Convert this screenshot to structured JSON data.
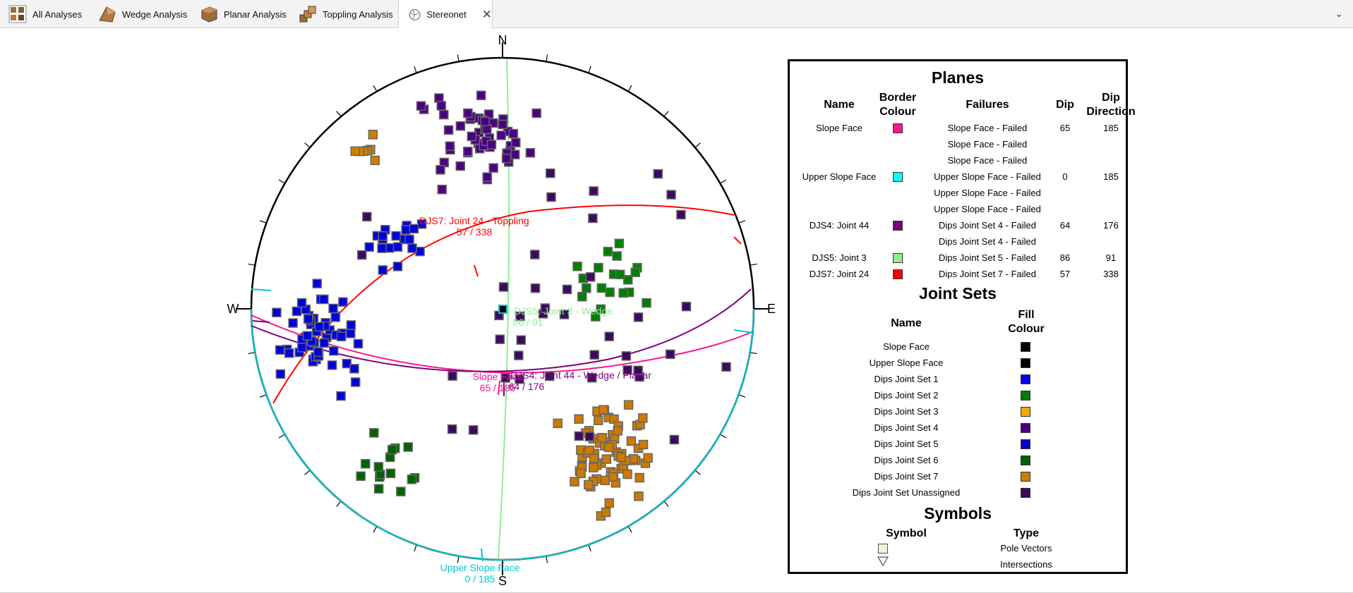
{
  "tabs": [
    {
      "label": "All Analyses",
      "icon": "all-analyses-icon"
    },
    {
      "label": "Wedge Analysis",
      "icon": "wedge-icon"
    },
    {
      "label": "Planar Analysis",
      "icon": "planar-icon"
    },
    {
      "label": "Toppling Analysis",
      "icon": "toppling-icon"
    },
    {
      "label": "Stereonet",
      "icon": "stereonet-icon",
      "active": true
    }
  ],
  "stereonet": {
    "compass": {
      "n": "N",
      "s": "S",
      "e": "E",
      "w": "W"
    },
    "labels": {
      "djs7_name": "DJS7: Joint 24 - Toppling",
      "djs7_orient": "57 / 338",
      "djs5_name": "DJS5: Joint 3 - Wedge",
      "djs5_orient": "86 / 91",
      "slope_name": "Slope Face",
      "slope_orient": "65 / 185",
      "djs4_name": "DJS4: Joint 44 - Wedge / Planar",
      "djs4_orient": "64 / 176",
      "upper_name": "Upper Slope Face",
      "upper_orient": "0 / 185"
    }
  },
  "legend": {
    "planes_title": "Planes",
    "planes_headers": {
      "name": "Name",
      "border": "Border Colour",
      "failures": "Failures",
      "dip": "Dip",
      "dipdir": "Dip Direction"
    },
    "planes": [
      {
        "name": "Slope Face",
        "color": "#ff1493",
        "failures": [
          "Slope Face - Failed",
          "Slope Face - Failed",
          "Slope Face - Failed"
        ],
        "dip": "65",
        "dipdir": "185"
      },
      {
        "name": "Upper Slope Face",
        "color": "#00ffff",
        "failures": [
          "Upper Slope Face - Failed",
          "Upper Slope Face - Failed",
          "Upper Slope Face - Failed"
        ],
        "dip": "0",
        "dipdir": "185"
      },
      {
        "name": "DJS4: Joint 44",
        "color": "#800080",
        "failures": [
          "Dips Joint Set 4 - Failed",
          "Dips Joint Set 4 - Failed"
        ],
        "dip": "64",
        "dipdir": "176"
      },
      {
        "name": "DJS5: Joint 3",
        "color": "#90ee90",
        "failures": [
          "Dips Joint Set 5 - Failed"
        ],
        "dip": "86",
        "dipdir": "91"
      },
      {
        "name": "DJS7: Joint 24",
        "color": "#ff0000",
        "failures": [
          "Dips Joint Set 7 - Failed"
        ],
        "dip": "57",
        "dipdir": "338"
      }
    ],
    "joint_sets_title": "Joint Sets",
    "joint_sets_headers": {
      "name": "Name",
      "fill": "Fill Colour"
    },
    "joint_sets": [
      {
        "name": "Slope Face",
        "color": "#000000"
      },
      {
        "name": "Upper Slope Face",
        "color": "#000000"
      },
      {
        "name": "Dips Joint Set 1",
        "color": "#0000ff"
      },
      {
        "name": "Dips Joint Set 2",
        "color": "#008000"
      },
      {
        "name": "Dips Joint Set 3",
        "color": "#ffa500"
      },
      {
        "name": "Dips Joint Set 4",
        "color": "#4b0082"
      },
      {
        "name": "Dips Joint Set 5",
        "color": "#0000cd"
      },
      {
        "name": "Dips Joint Set 6",
        "color": "#006400"
      },
      {
        "name": "Dips Joint Set 7",
        "color": "#cc8000"
      },
      {
        "name": "Dips Joint Set Unassigned",
        "color": "#3b0a60"
      }
    ],
    "symbols_title": "Symbols",
    "symbols_headers": {
      "symbol": "Symbol",
      "type": "Type"
    },
    "symbols": [
      {
        "type": "Pole Vectors",
        "icon": "square-symbol-icon"
      },
      {
        "type": "Intersections",
        "icon": "triangle-symbol-icon"
      }
    ]
  }
}
